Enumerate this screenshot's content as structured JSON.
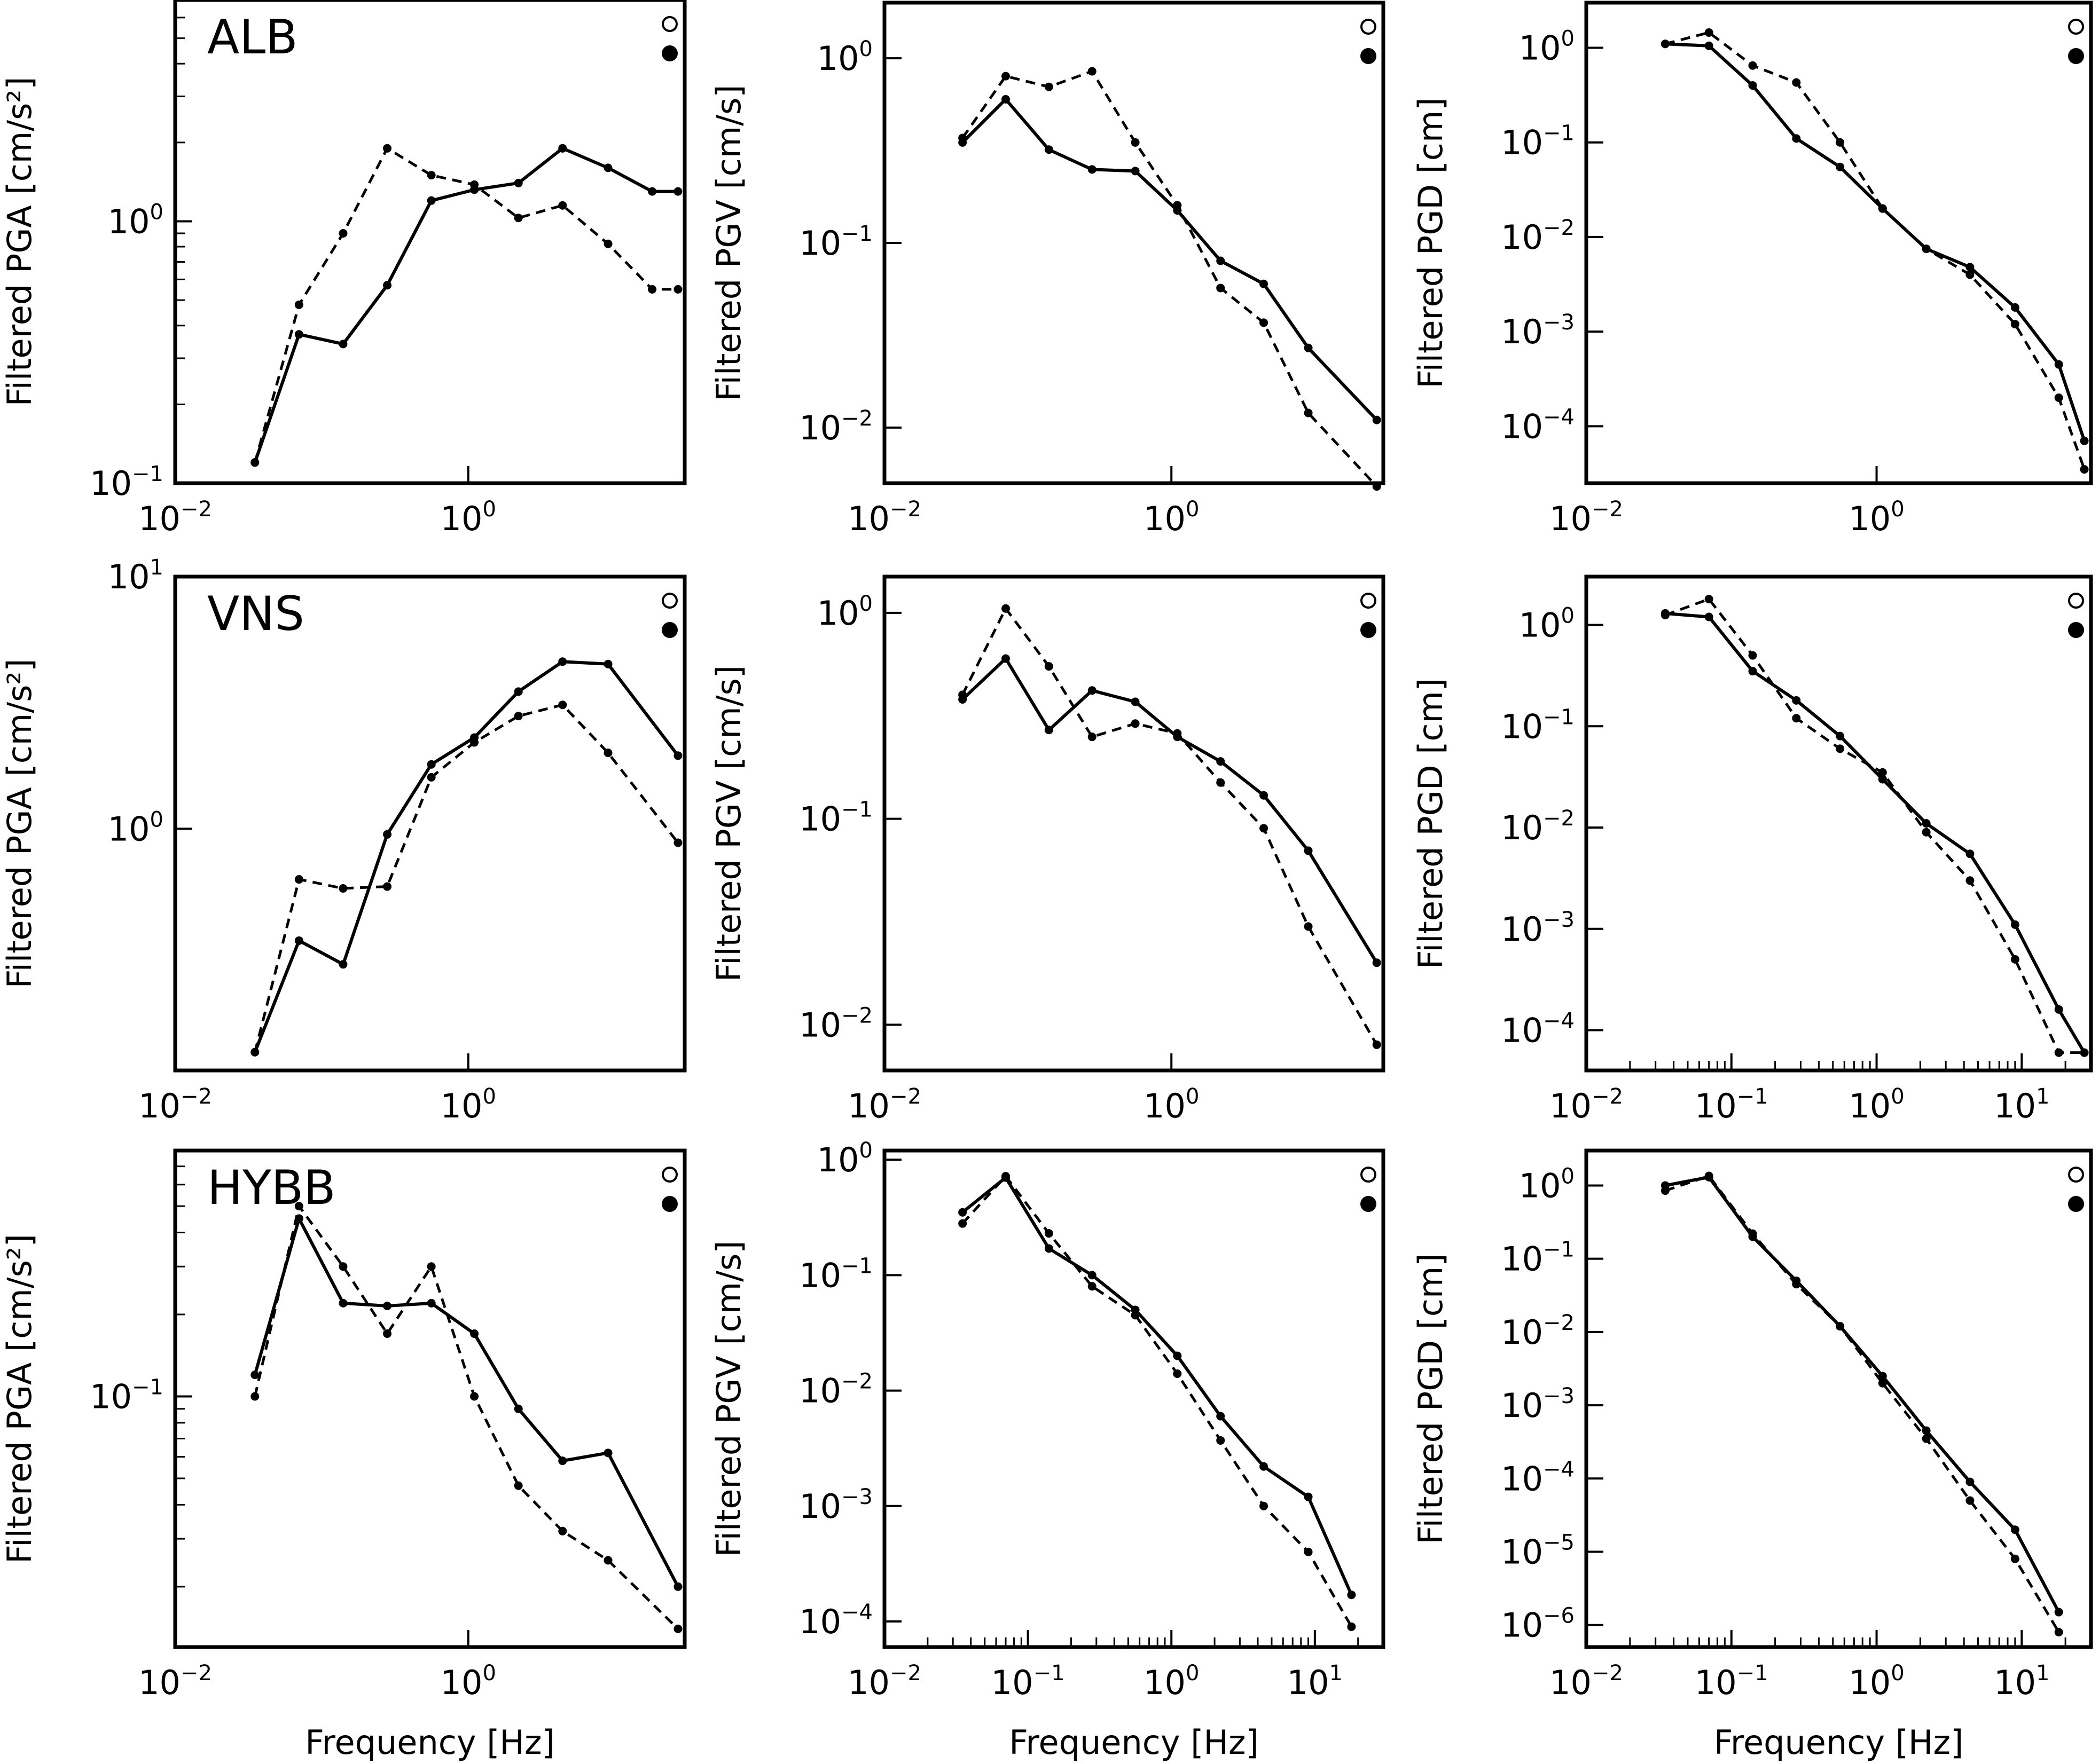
{
  "figure": {
    "xlabel_text": "Frequency [Hz]",
    "line_color": "#000000",
    "background": "#ffffff",
    "series_styles": [
      "solid",
      "dashed"
    ],
    "legend_markers": [
      "open-circle",
      "filled-circle"
    ]
  },
  "rows": [
    {
      "station": "ALB"
    },
    {
      "station": "VNS"
    },
    {
      "station": "HYBB"
    }
  ],
  "chart_data": [
    {
      "id": "ALB-PGA",
      "type": "line",
      "station": "ALB",
      "ylabel": "Filtered PGA [cm/s²]",
      "xscale": "log",
      "yscale": "log",
      "xlim": [
        0.01,
        30
      ],
      "ylim": [
        0.1,
        7
      ],
      "xticks_major": [
        0.01,
        1
      ],
      "yticks_major": [
        0.1,
        1
      ],
      "minor_ticks_x": false,
      "minor_ticks_y": true,
      "xlabel": "",
      "legend": {
        "open": "top-right",
        "filled": "top-right"
      },
      "x": [
        0.035,
        0.07,
        0.14,
        0.28,
        0.56,
        1.1,
        2.2,
        4.4,
        9,
        18,
        27
      ],
      "series": [
        {
          "style": "solid",
          "values": [
            0.12,
            0.37,
            0.34,
            0.57,
            1.2,
            1.32,
            1.4,
            1.9,
            1.6,
            1.3,
            1.3
          ]
        },
        {
          "style": "dashed",
          "values": [
            0.12,
            0.48,
            0.9,
            1.9,
            1.5,
            1.38,
            1.03,
            1.15,
            0.82,
            0.55,
            0.55
          ]
        }
      ]
    },
    {
      "id": "ALB-PGV",
      "type": "line",
      "station": "ALB",
      "ylabel": "Filtered PGV [cm/s]",
      "xscale": "log",
      "yscale": "log",
      "xlim": [
        0.01,
        30
      ],
      "ylim": [
        0.005,
        2
      ],
      "xticks_major": [
        0.01,
        1
      ],
      "yticks_major": [
        0.01,
        0.1,
        1
      ],
      "minor_ticks_x": false,
      "minor_ticks_y": false,
      "xlabel": "",
      "legend": {
        "open": "top-right",
        "filled": "top-right"
      },
      "x": [
        0.035,
        0.07,
        0.14,
        0.28,
        0.56,
        1.1,
        2.2,
        4.4,
        9,
        27
      ],
      "series": [
        {
          "style": "solid",
          "values": [
            0.35,
            0.6,
            0.32,
            0.25,
            0.245,
            0.15,
            0.08,
            0.06,
            0.027,
            0.011
          ]
        },
        {
          "style": "dashed",
          "values": [
            0.37,
            0.8,
            0.7,
            0.85,
            0.35,
            0.16,
            0.057,
            0.037,
            0.012,
            0.0048
          ]
        }
      ]
    },
    {
      "id": "ALB-PGD",
      "type": "line",
      "station": "ALB",
      "ylabel": "Filtered PGD [cm]",
      "xscale": "log",
      "yscale": "log",
      "xlim": [
        0.01,
        30
      ],
      "ylim": [
        2.5e-05,
        3
      ],
      "xticks_major": [
        0.01,
        1
      ],
      "yticks_major": [
        0.0001,
        0.001,
        0.01,
        0.1,
        1
      ],
      "minor_ticks_x": false,
      "minor_ticks_y": false,
      "xlabel": "",
      "legend": {
        "open": "top-right",
        "filled": "top-right"
      },
      "x": [
        0.035,
        0.07,
        0.14,
        0.28,
        0.56,
        1.1,
        2.2,
        4.4,
        9,
        18,
        27
      ],
      "series": [
        {
          "style": "solid",
          "values": [
            1.1,
            1.05,
            0.4,
            0.11,
            0.055,
            0.02,
            0.0075,
            0.0048,
            0.0018,
            0.00045,
            7e-05
          ]
        },
        {
          "style": "dashed",
          "values": [
            1.1,
            1.45,
            0.65,
            0.43,
            0.1,
            0.02,
            0.0075,
            0.004,
            0.0012,
            0.0002,
            3.5e-05
          ]
        }
      ]
    },
    {
      "id": "VNS-PGA",
      "type": "line",
      "station": "VNS",
      "ylabel": "Filtered PGA [cm/s²]",
      "xscale": "log",
      "yscale": "log",
      "xlim": [
        0.01,
        30
      ],
      "ylim": [
        0.11,
        10
      ],
      "xticks_major": [
        0.01,
        1
      ],
      "yticks_major": [
        1,
        10
      ],
      "minor_ticks_x": false,
      "minor_ticks_y": false,
      "xlabel": "",
      "legend": {
        "open": "top-right",
        "filled": "top-right"
      },
      "x": [
        0.035,
        0.07,
        0.14,
        0.28,
        0.56,
        1.1,
        2.2,
        4.4,
        9,
        27
      ],
      "series": [
        {
          "style": "solid",
          "values": [
            0.13,
            0.36,
            0.29,
            0.95,
            1.8,
            2.3,
            3.5,
            4.6,
            4.5,
            1.95
          ]
        },
        {
          "style": "dashed",
          "values": [
            0.13,
            0.63,
            0.58,
            0.59,
            1.6,
            2.2,
            2.8,
            3.1,
            2.0,
            0.88
          ]
        }
      ]
    },
    {
      "id": "VNS-PGV",
      "type": "line",
      "station": "VNS",
      "ylabel": "Filtered PGV [cm/s]",
      "xscale": "log",
      "yscale": "log",
      "xlim": [
        0.01,
        30
      ],
      "ylim": [
        0.006,
        1.5
      ],
      "xticks_major": [
        0.01,
        1
      ],
      "yticks_major": [
        0.01,
        0.1,
        1
      ],
      "minor_ticks_x": false,
      "minor_ticks_y": false,
      "xlabel": "",
      "legend": {
        "open": "top-right",
        "filled": "top-right"
      },
      "x": [
        0.035,
        0.07,
        0.14,
        0.28,
        0.56,
        1.1,
        2.2,
        4.4,
        9,
        27
      ],
      "series": [
        {
          "style": "solid",
          "values": [
            0.38,
            0.6,
            0.27,
            0.42,
            0.37,
            0.25,
            0.19,
            0.13,
            0.07,
            0.02
          ]
        },
        {
          "style": "dashed",
          "values": [
            0.4,
            1.05,
            0.55,
            0.25,
            0.29,
            0.26,
            0.15,
            0.09,
            0.03,
            0.008
          ]
        }
      ]
    },
    {
      "id": "VNS-PGD",
      "type": "line",
      "station": "VNS",
      "ylabel": "Filtered PGD [cm]",
      "xscale": "log",
      "yscale": "log",
      "xlim": [
        0.01,
        30
      ],
      "ylim": [
        4e-05,
        3
      ],
      "xticks_major": [
        0.01,
        0.1,
        1,
        10
      ],
      "yticks_major": [
        0.0001,
        0.001,
        0.01,
        0.1,
        1
      ],
      "minor_ticks_x": true,
      "minor_ticks_y": false,
      "xlabel": "",
      "legend": {
        "open": "top-right",
        "filled": "top-right"
      },
      "x": [
        0.035,
        0.07,
        0.14,
        0.28,
        0.56,
        1.1,
        2.2,
        4.4,
        9,
        18,
        27
      ],
      "series": [
        {
          "style": "solid",
          "values": [
            1.3,
            1.2,
            0.35,
            0.18,
            0.08,
            0.03,
            0.011,
            0.0055,
            0.0011,
            0.00016,
            6e-05
          ]
        },
        {
          "style": "dashed",
          "values": [
            1.25,
            1.8,
            0.5,
            0.12,
            0.06,
            0.035,
            0.009,
            0.003,
            0.0005,
            6e-05,
            6e-05
          ]
        }
      ]
    },
    {
      "id": "HYBB-PGA",
      "type": "line",
      "station": "HYBB",
      "ylabel": "Filtered PGA [cm/s²]",
      "xscale": "log",
      "yscale": "log",
      "xlim": [
        0.01,
        30
      ],
      "ylim": [
        0.012,
        0.8
      ],
      "xticks_major": [
        0.01,
        1
      ],
      "yticks_major": [
        0.1
      ],
      "minor_ticks_x": false,
      "minor_ticks_y": true,
      "xlabel": "Frequency [Hz]",
      "legend": {
        "open": "top-right",
        "filled": "top-right"
      },
      "x": [
        0.035,
        0.07,
        0.14,
        0.28,
        0.56,
        1.1,
        2.2,
        4.4,
        9,
        27
      ],
      "series": [
        {
          "style": "solid",
          "values": [
            0.12,
            0.45,
            0.22,
            0.215,
            0.22,
            0.17,
            0.09,
            0.058,
            0.062,
            0.02
          ]
        },
        {
          "style": "dashed",
          "values": [
            0.1,
            0.5,
            0.3,
            0.17,
            0.3,
            0.1,
            0.047,
            0.032,
            0.025,
            0.014
          ]
        }
      ]
    },
    {
      "id": "HYBB-PGV",
      "type": "line",
      "station": "HYBB",
      "ylabel": "Filtered PGV [cm/s]",
      "xscale": "log",
      "yscale": "log",
      "xlim": [
        0.01,
        30
      ],
      "ylim": [
        6e-05,
        1.2
      ],
      "xticks_major": [
        0.01,
        0.1,
        1,
        10
      ],
      "yticks_major": [
        0.0001,
        0.001,
        0.01,
        0.1,
        1
      ],
      "minor_ticks_x": true,
      "minor_ticks_y": false,
      "xlabel": "Frequency [Hz]",
      "legend": {
        "open": "top-right",
        "filled": "top-right"
      },
      "x": [
        0.035,
        0.07,
        0.14,
        0.28,
        0.56,
        1.1,
        2.2,
        4.4,
        9,
        18
      ],
      "series": [
        {
          "style": "solid",
          "values": [
            0.35,
            0.7,
            0.17,
            0.1,
            0.05,
            0.02,
            0.006,
            0.0022,
            0.0012,
            0.00017
          ]
        },
        {
          "style": "dashed",
          "values": [
            0.28,
            0.72,
            0.23,
            0.08,
            0.045,
            0.014,
            0.0037,
            0.001,
            0.0004,
            9e-05
          ]
        }
      ]
    },
    {
      "id": "HYBB-PGD",
      "type": "line",
      "station": "HYBB",
      "ylabel": "Filtered PGD [cm]",
      "xscale": "log",
      "yscale": "log",
      "xlim": [
        0.01,
        30
      ],
      "ylim": [
        5e-07,
        3
      ],
      "xticks_major": [
        0.01,
        0.1,
        1,
        10
      ],
      "yticks_major": [
        1e-06,
        1e-05,
        0.0001,
        0.001,
        0.01,
        0.1,
        1
      ],
      "minor_ticks_x": true,
      "minor_ticks_y": false,
      "xlabel": "Frequency [Hz]",
      "legend": {
        "open": "top-right",
        "filled": "top-right"
      },
      "x": [
        0.035,
        0.07,
        0.14,
        0.28,
        0.56,
        1.1,
        2.2,
        4.4,
        9,
        18
      ],
      "series": [
        {
          "style": "solid",
          "values": [
            1.0,
            1.3,
            0.2,
            0.05,
            0.012,
            0.0025,
            0.00045,
            9e-05,
            2e-05,
            1.5e-06
          ]
        },
        {
          "style": "dashed",
          "values": [
            0.85,
            1.35,
            0.22,
            0.045,
            0.012,
            0.002,
            0.00035,
            5e-05,
            8e-06,
            8e-07
          ]
        }
      ]
    }
  ]
}
